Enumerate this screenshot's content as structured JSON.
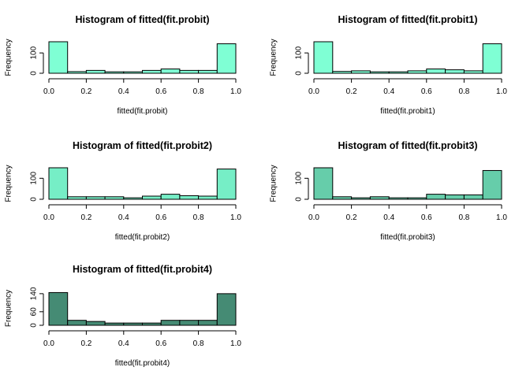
{
  "chart_data": [
    {
      "type": "bar",
      "title": "Histogram of fitted(fit.probit)",
      "xlabel": "fitted(fit.probit)",
      "ylabel": "Frequency",
      "bin_edges": [
        0.0,
        0.1,
        0.2,
        0.3,
        0.4,
        0.5,
        0.6,
        0.7,
        0.8,
        0.9,
        1.0
      ],
      "values": [
        155,
        8,
        14,
        7,
        7,
        14,
        21,
        14,
        14,
        145
      ],
      "xlim": [
        0.0,
        1.0
      ],
      "ylim": [
        0,
        155
      ],
      "x_ticks": [
        "0.0",
        "0.2",
        "0.4",
        "0.6",
        "0.8",
        "1.0"
      ],
      "y_ticks": [
        {
          "value": 0,
          "label": "0"
        },
        {
          "value": 100,
          "label": "100"
        }
      ],
      "color": "#7FFFD4"
    },
    {
      "type": "bar",
      "title": "Histogram of fitted(fit.probit1)",
      "xlabel": "fitted(fit.probit1)",
      "ylabel": "Frequency",
      "bin_edges": [
        0.0,
        0.1,
        0.2,
        0.3,
        0.4,
        0.5,
        0.6,
        0.7,
        0.8,
        0.9,
        1.0
      ],
      "values": [
        155,
        9,
        12,
        7,
        7,
        12,
        21,
        17,
        12,
        145
      ],
      "xlim": [
        0.0,
        1.0
      ],
      "ylim": [
        0,
        155
      ],
      "x_ticks": [
        "0.0",
        "0.2",
        "0.4",
        "0.6",
        "0.8",
        "1.0"
      ],
      "y_ticks": [
        {
          "value": 0,
          "label": "0"
        },
        {
          "value": 100,
          "label": "100"
        }
      ],
      "color": "#7FFFD4"
    },
    {
      "type": "bar",
      "title": "Histogram of fitted(fit.probit2)",
      "xlabel": "fitted(fit.probit2)",
      "ylabel": "Frequency",
      "bin_edges": [
        0.0,
        0.1,
        0.2,
        0.3,
        0.4,
        0.5,
        0.6,
        0.7,
        0.8,
        0.9,
        1.0
      ],
      "values": [
        150,
        12,
        12,
        12,
        7,
        15,
        24,
        17,
        15,
        144
      ],
      "xlim": [
        0.0,
        1.0
      ],
      "ylim": [
        0,
        150
      ],
      "x_ticks": [
        "0.0",
        "0.2",
        "0.4",
        "0.6",
        "0.8",
        "1.0"
      ],
      "y_ticks": [
        {
          "value": 0,
          "label": "0"
        },
        {
          "value": 100,
          "label": "100"
        }
      ],
      "color": "#76EEC6"
    },
    {
      "type": "bar",
      "title": "Histogram of fitted(fit.probit3)",
      "xlabel": "fitted(fit.probit3)",
      "ylabel": "Frequency",
      "bin_edges": [
        0.0,
        0.1,
        0.2,
        0.3,
        0.4,
        0.5,
        0.6,
        0.7,
        0.8,
        0.9,
        1.0
      ],
      "values": [
        150,
        12,
        7,
        12,
        7,
        7,
        24,
        21,
        21,
        137
      ],
      "xlim": [
        0.0,
        1.0
      ],
      "ylim": [
        0,
        150
      ],
      "x_ticks": [
        "0.0",
        "0.2",
        "0.4",
        "0.6",
        "0.8",
        "1.0"
      ],
      "y_ticks": [
        {
          "value": 0,
          "label": "0"
        },
        {
          "value": 100,
          "label": "100"
        }
      ],
      "color": "#66CDAA"
    },
    {
      "type": "bar",
      "title": "Histogram of fitted(fit.probit4)",
      "xlabel": "fitted(fit.probit4)",
      "ylabel": "Frequency",
      "bin_edges": [
        0.0,
        0.1,
        0.2,
        0.3,
        0.4,
        0.5,
        0.6,
        0.7,
        0.8,
        0.9,
        1.0
      ],
      "values": [
        145,
        22,
        17,
        10,
        10,
        10,
        22,
        22,
        22,
        140
      ],
      "xlim": [
        0.0,
        1.0
      ],
      "ylim": [
        0,
        150
      ],
      "x_ticks": [
        "0.0",
        "0.2",
        "0.4",
        "0.6",
        "0.8",
        "1.0"
      ],
      "y_ticks": [
        {
          "value": 0,
          "label": "0"
        },
        {
          "value": 60,
          "label": "60"
        },
        {
          "value": 140,
          "label": "140"
        }
      ],
      "color": "#458B74"
    }
  ]
}
